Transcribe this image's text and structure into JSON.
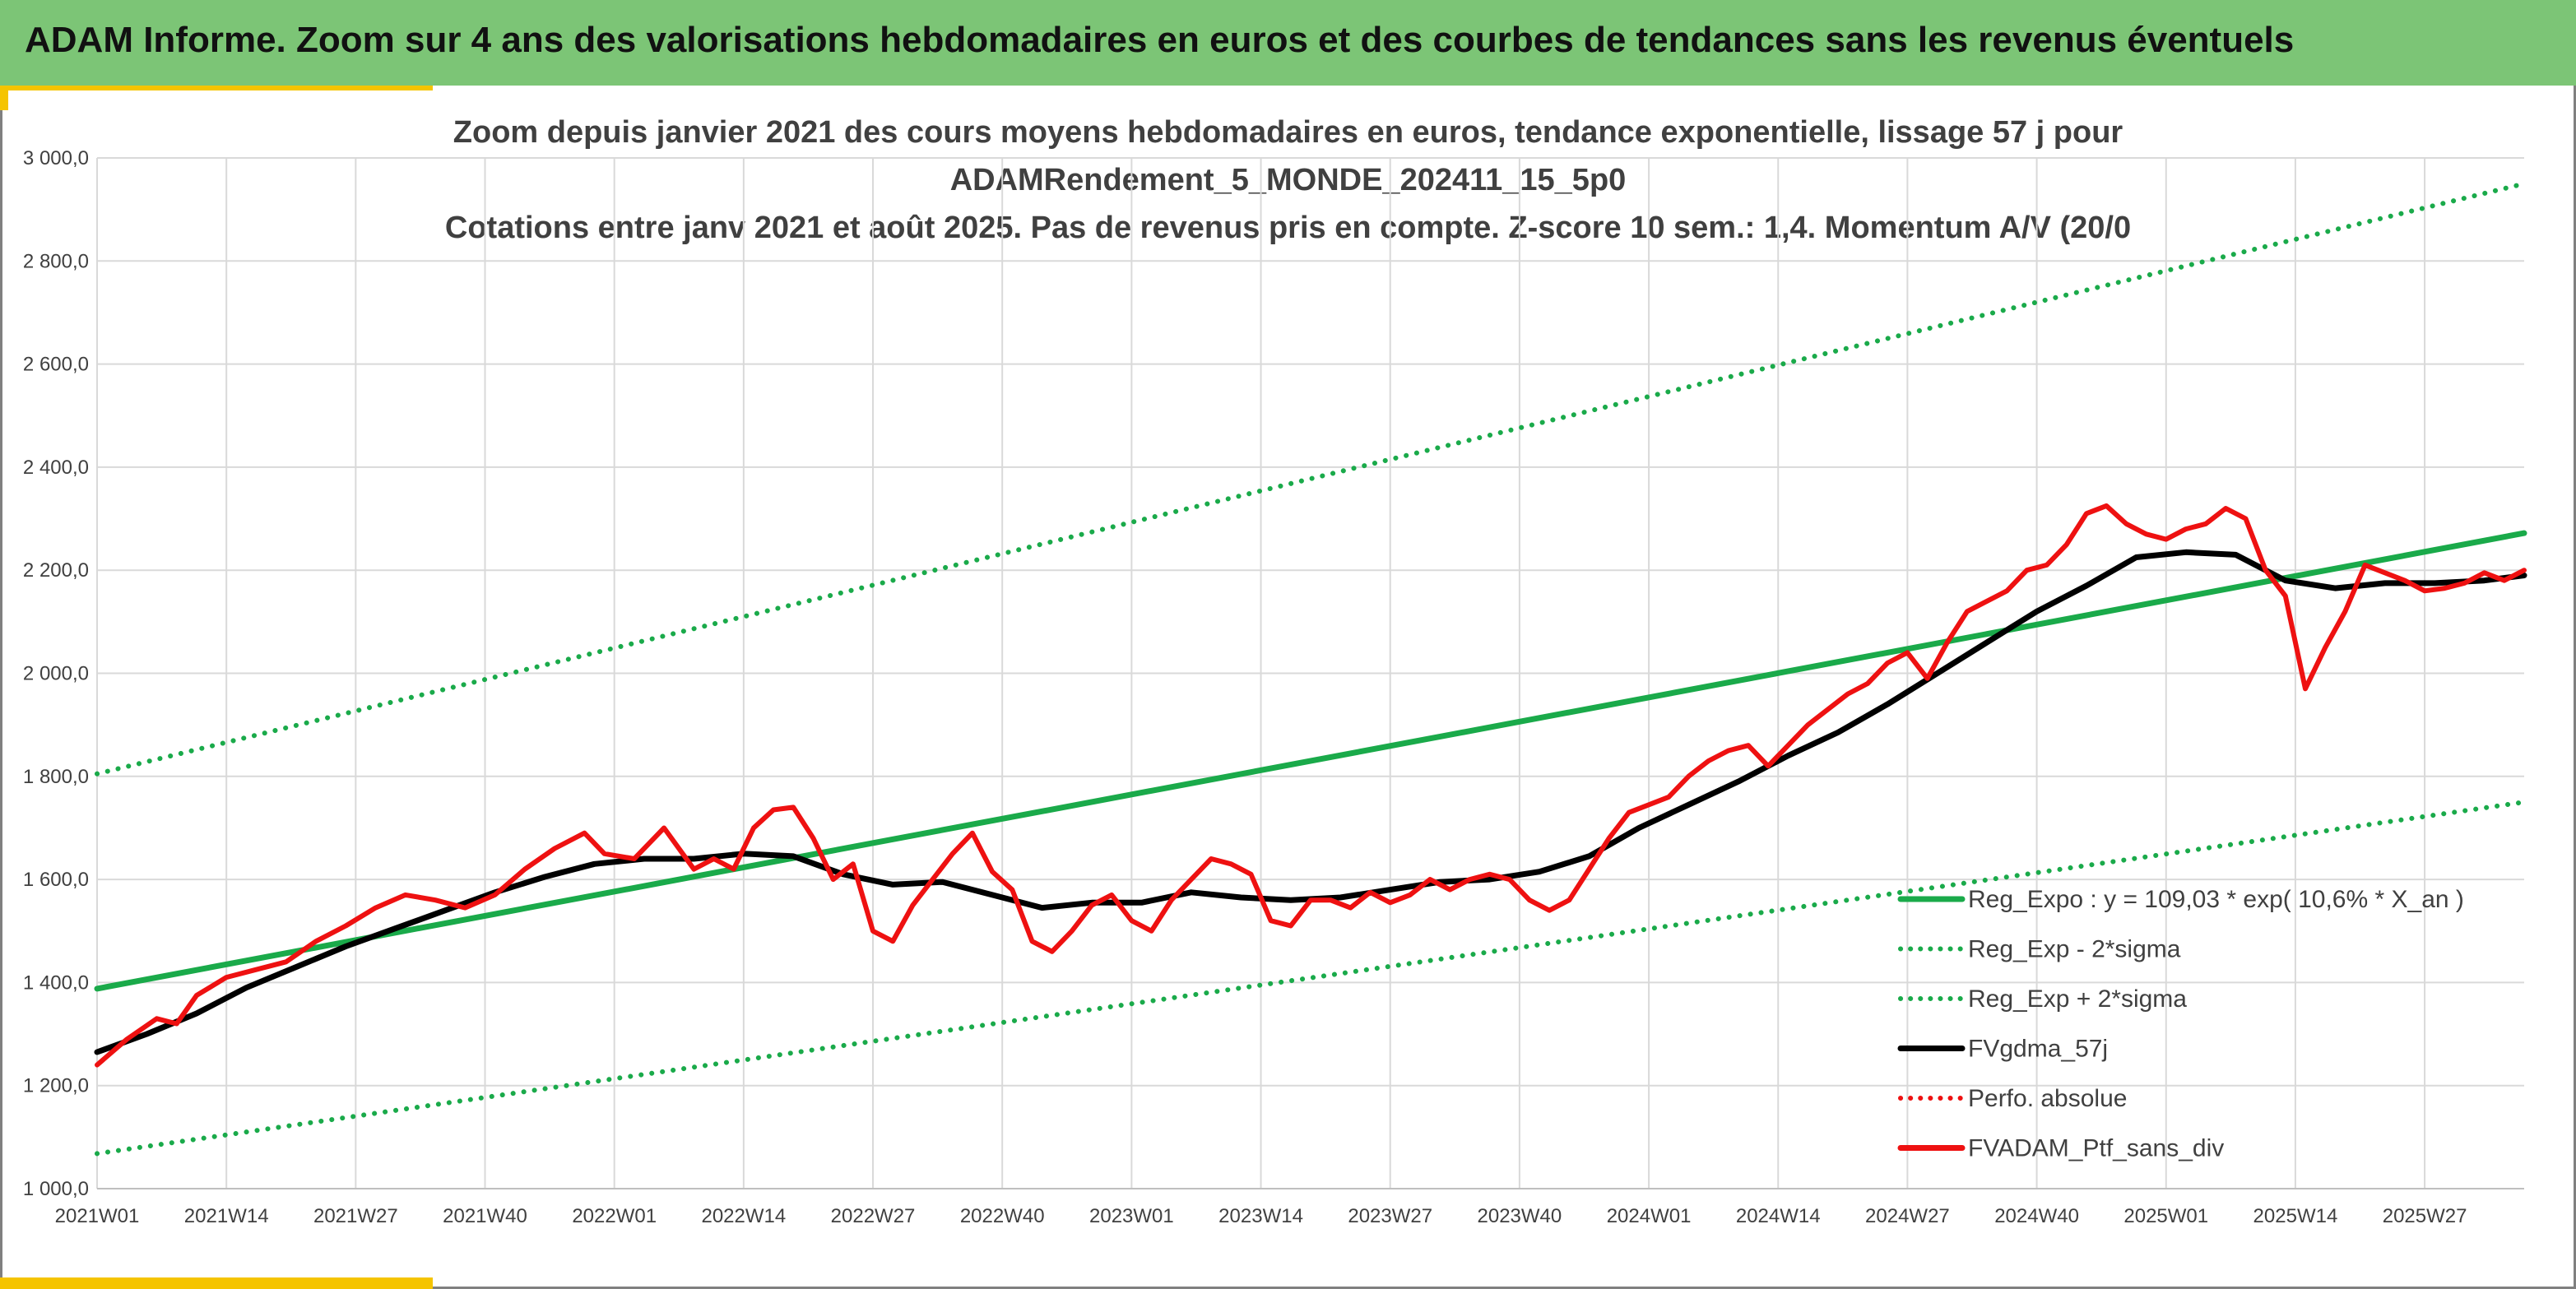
{
  "header": {
    "title": "ADAM Informe. Zoom sur 4 ans des valorisations hebdomadaires en euros et des courbes de tendances sans les revenus éventuels"
  },
  "colors": {
    "banner": "#7cc576",
    "accent": "#f5c400",
    "trend_green": "#1aaa4a",
    "mean_black": "#000000",
    "price_red": "#ee1111",
    "grid": "#d9d9d9"
  },
  "chart_data": {
    "type": "line",
    "title_lines": [
      "Zoom depuis janvier 2021 des cours moyens hebdomadaires en euros, tendance exponentielle, lissage 57 j pour",
      "ADAMRendement_5_MONDE_202411_15_5p0",
      "Cotations entre janv 2021 et août 2025. Pas de revenus pris en compte. Z-score 10 sem.: 1,4. Momentum A/V (20/0"
    ],
    "xlabel": "",
    "ylabel": "",
    "ylim": [
      1000,
      3000
    ],
    "y_ticks": [
      1000,
      1200,
      1400,
      1600,
      1800,
      2000,
      2200,
      2400,
      2600,
      2800,
      3000
    ],
    "y_tick_labels": [
      "1 000,0",
      "1 200,0",
      "1 400,0",
      "1 600,0",
      "1 800,0",
      "2 000,0",
      "2 200,0",
      "2 400,0",
      "2 600,0",
      "2 800,0",
      "3 000,0"
    ],
    "x_tick_labels": [
      "2021W01",
      "2021W14",
      "2021W27",
      "2021W40",
      "2022W01",
      "2022W14",
      "2022W27",
      "2022W40",
      "2023W01",
      "2023W14",
      "2023W27",
      "2023W40",
      "2024W01",
      "2024W14",
      "2024W27",
      "2024W40",
      "2025W01",
      "2025W14",
      "2025W27"
    ],
    "x_tick_index": [
      0,
      13,
      26,
      39,
      52,
      65,
      78,
      91,
      104,
      117,
      130,
      143,
      156,
      169,
      182,
      195,
      208,
      221,
      234
    ],
    "x_index_range": [
      0,
      244
    ],
    "grid": true,
    "legend_position": "bottom-right",
    "series": [
      {
        "name": "Reg_Expo : y = 109,03 * exp( 10,6% *  X_an )",
        "style": "solid",
        "color": "#1aaa4a",
        "points": [
          [
            0,
            1388
          ],
          [
            244,
            2272
          ]
        ]
      },
      {
        "name": "Reg_Exp - 2*sigma",
        "style": "dotted",
        "color": "#1aaa4a",
        "points": [
          [
            0,
            1068
          ],
          [
            244,
            1750
          ]
        ]
      },
      {
        "name": "Reg_Exp + 2*sigma",
        "style": "dotted",
        "color": "#1aaa4a",
        "points": [
          [
            0,
            1805
          ],
          [
            244,
            2950
          ]
        ]
      },
      {
        "name": "FVgdma_57j",
        "style": "solid",
        "color": "#000000",
        "points": [
          [
            0,
            1265
          ],
          [
            5,
            1300
          ],
          [
            10,
            1340
          ],
          [
            15,
            1390
          ],
          [
            20,
            1430
          ],
          [
            25,
            1470
          ],
          [
            30,
            1505
          ],
          [
            35,
            1540
          ],
          [
            40,
            1575
          ],
          [
            45,
            1605
          ],
          [
            50,
            1630
          ],
          [
            55,
            1640
          ],
          [
            60,
            1640
          ],
          [
            65,
            1650
          ],
          [
            70,
            1645
          ],
          [
            75,
            1610
          ],
          [
            80,
            1590
          ],
          [
            85,
            1595
          ],
          [
            90,
            1570
          ],
          [
            95,
            1545
          ],
          [
            100,
            1555
          ],
          [
            105,
            1555
          ],
          [
            110,
            1575
          ],
          [
            115,
            1565
          ],
          [
            120,
            1560
          ],
          [
            125,
            1565
          ],
          [
            130,
            1580
          ],
          [
            135,
            1595
          ],
          [
            140,
            1600
          ],
          [
            145,
            1615
          ],
          [
            150,
            1645
          ],
          [
            155,
            1700
          ],
          [
            160,
            1745
          ],
          [
            165,
            1790
          ],
          [
            170,
            1840
          ],
          [
            175,
            1885
          ],
          [
            180,
            1940
          ],
          [
            185,
            2000
          ],
          [
            190,
            2060
          ],
          [
            195,
            2120
          ],
          [
            200,
            2170
          ],
          [
            205,
            2225
          ],
          [
            210,
            2235
          ],
          [
            215,
            2230
          ],
          [
            220,
            2180
          ],
          [
            225,
            2165
          ],
          [
            230,
            2175
          ],
          [
            235,
            2175
          ],
          [
            240,
            2180
          ],
          [
            244,
            2190
          ]
        ]
      },
      {
        "name": "Perfo. absolue",
        "style": "dotted",
        "color": "#ee1111",
        "points": []
      },
      {
        "name": "FVADAM_Ptf_sans_div",
        "style": "solid",
        "color": "#ee1111",
        "points": [
          [
            0,
            1240
          ],
          [
            3,
            1290
          ],
          [
            6,
            1330
          ],
          [
            8,
            1320
          ],
          [
            10,
            1375
          ],
          [
            13,
            1410
          ],
          [
            16,
            1425
          ],
          [
            19,
            1440
          ],
          [
            22,
            1480
          ],
          [
            25,
            1510
          ],
          [
            28,
            1545
          ],
          [
            31,
            1570
          ],
          [
            34,
            1560
          ],
          [
            37,
            1545
          ],
          [
            40,
            1570
          ],
          [
            43,
            1620
          ],
          [
            46,
            1660
          ],
          [
            49,
            1690
          ],
          [
            51,
            1650
          ],
          [
            54,
            1640
          ],
          [
            57,
            1700
          ],
          [
            60,
            1620
          ],
          [
            62,
            1640
          ],
          [
            64,
            1620
          ],
          [
            66,
            1700
          ],
          [
            68,
            1735
          ],
          [
            70,
            1740
          ],
          [
            72,
            1680
          ],
          [
            74,
            1600
          ],
          [
            76,
            1630
          ],
          [
            78,
            1500
          ],
          [
            80,
            1480
          ],
          [
            82,
            1550
          ],
          [
            84,
            1600
          ],
          [
            86,
            1650
          ],
          [
            88,
            1690
          ],
          [
            90,
            1615
          ],
          [
            92,
            1580
          ],
          [
            94,
            1480
          ],
          [
            96,
            1460
          ],
          [
            98,
            1500
          ],
          [
            100,
            1550
          ],
          [
            102,
            1570
          ],
          [
            104,
            1520
          ],
          [
            106,
            1500
          ],
          [
            108,
            1560
          ],
          [
            110,
            1600
          ],
          [
            112,
            1640
          ],
          [
            114,
            1630
          ],
          [
            116,
            1610
          ],
          [
            118,
            1520
          ],
          [
            120,
            1510
          ],
          [
            122,
            1560
          ],
          [
            124,
            1560
          ],
          [
            126,
            1545
          ],
          [
            128,
            1575
          ],
          [
            130,
            1555
          ],
          [
            132,
            1570
          ],
          [
            134,
            1600
          ],
          [
            136,
            1580
          ],
          [
            138,
            1600
          ],
          [
            140,
            1610
          ],
          [
            142,
            1600
          ],
          [
            144,
            1560
          ],
          [
            146,
            1540
          ],
          [
            148,
            1560
          ],
          [
            150,
            1620
          ],
          [
            152,
            1680
          ],
          [
            154,
            1730
          ],
          [
            156,
            1745
          ],
          [
            158,
            1760
          ],
          [
            160,
            1800
          ],
          [
            162,
            1830
          ],
          [
            164,
            1850
          ],
          [
            166,
            1860
          ],
          [
            168,
            1820
          ],
          [
            170,
            1860
          ],
          [
            172,
            1900
          ],
          [
            174,
            1930
          ],
          [
            176,
            1960
          ],
          [
            178,
            1980
          ],
          [
            180,
            2020
          ],
          [
            182,
            2040
          ],
          [
            184,
            1990
          ],
          [
            186,
            2060
          ],
          [
            188,
            2120
          ],
          [
            190,
            2140
          ],
          [
            192,
            2160
          ],
          [
            194,
            2200
          ],
          [
            196,
            2210
          ],
          [
            198,
            2250
          ],
          [
            200,
            2310
          ],
          [
            202,
            2325
          ],
          [
            204,
            2290
          ],
          [
            206,
            2270
          ],
          [
            208,
            2260
          ],
          [
            210,
            2280
          ],
          [
            212,
            2290
          ],
          [
            214,
            2320
          ],
          [
            216,
            2300
          ],
          [
            218,
            2200
          ],
          [
            220,
            2150
          ],
          [
            222,
            1970
          ],
          [
            224,
            2050
          ],
          [
            226,
            2120
          ],
          [
            228,
            2210
          ],
          [
            230,
            2195
          ],
          [
            232,
            2180
          ],
          [
            234,
            2160
          ],
          [
            236,
            2165
          ],
          [
            238,
            2175
          ],
          [
            240,
            2195
          ],
          [
            242,
            2180
          ],
          [
            244,
            2200
          ]
        ]
      }
    ]
  }
}
